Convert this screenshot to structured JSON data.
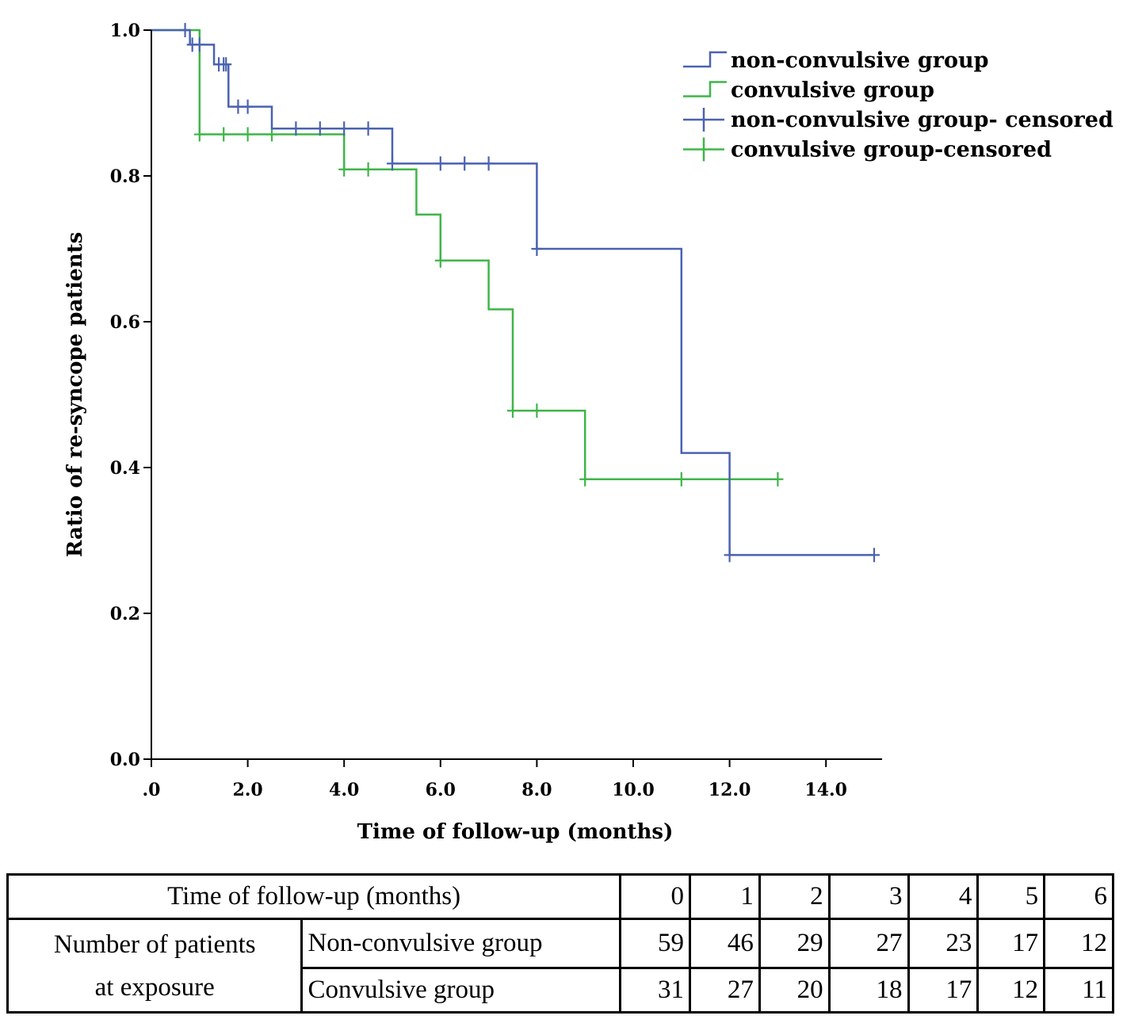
{
  "chart_data": {
    "type": "line",
    "step": true,
    "xlabel": "Time of follow-up (months)",
    "ylabel": "Ratio of re-syncope patients",
    "xlim": [
      0,
      15
    ],
    "ylim": [
      0,
      1
    ],
    "xticks": [
      {
        "value": 0,
        "label": ".0"
      },
      {
        "value": 2,
        "label": "2.0"
      },
      {
        "value": 4,
        "label": "4.0"
      },
      {
        "value": 6,
        "label": "6.0"
      },
      {
        "value": 8,
        "label": "8.0"
      },
      {
        "value": 10,
        "label": "10.0"
      },
      {
        "value": 12,
        "label": "12.0"
      },
      {
        "value": 14,
        "label": "14.0"
      }
    ],
    "yticks": [
      {
        "value": 0,
        "label": "0.0"
      },
      {
        "value": 0.2,
        "label": "0.2"
      },
      {
        "value": 0.4,
        "label": "0.4"
      },
      {
        "value": 0.6,
        "label": "0.6"
      },
      {
        "value": 0.8,
        "label": "0.8"
      },
      {
        "value": 1.0,
        "label": "1.0"
      }
    ],
    "grid": false,
    "legend_position": "top-right",
    "legend": [
      {
        "label": "non-convulsive group",
        "symbol": "step",
        "color": "#4a62b0"
      },
      {
        "label": "convulsive group",
        "symbol": "step",
        "color": "#3fb548"
      },
      {
        "label": "non-convulsive group- censored",
        "symbol": "plus",
        "color": "#4a62b0"
      },
      {
        "label": "convulsive group-censored",
        "symbol": "plus",
        "color": "#3fb548"
      }
    ],
    "series": [
      {
        "name": "non-convulsive group",
        "color": "#4a62b0",
        "steps": [
          {
            "x": 0,
            "y": 1.0
          },
          {
            "x": 0.8,
            "y": 0.98
          },
          {
            "x": 1.3,
            "y": 0.953
          },
          {
            "x": 1.6,
            "y": 0.895
          },
          {
            "x": 2.5,
            "y": 0.865
          },
          {
            "x": 5.0,
            "y": 0.817
          },
          {
            "x": 8.0,
            "y": 0.7
          },
          {
            "x": 11.0,
            "y": 0.42
          },
          {
            "x": 12.0,
            "y": 0.28
          }
        ],
        "end_x": 15.0,
        "censored": [
          {
            "x": 0.7,
            "y": 1.0
          },
          {
            "x": 0.85,
            "y": 0.98
          },
          {
            "x": 1.0,
            "y": 0.98
          },
          {
            "x": 1.4,
            "y": 0.953
          },
          {
            "x": 1.5,
            "y": 0.953
          },
          {
            "x": 1.55,
            "y": 0.953
          },
          {
            "x": 1.8,
            "y": 0.895
          },
          {
            "x": 2.0,
            "y": 0.895
          },
          {
            "x": 3.0,
            "y": 0.865
          },
          {
            "x": 3.5,
            "y": 0.865
          },
          {
            "x": 4.0,
            "y": 0.865
          },
          {
            "x": 4.5,
            "y": 0.865
          },
          {
            "x": 5.0,
            "y": 0.817
          },
          {
            "x": 6.0,
            "y": 0.817
          },
          {
            "x": 6.5,
            "y": 0.817
          },
          {
            "x": 7.0,
            "y": 0.817
          },
          {
            "x": 8.0,
            "y": 0.7
          },
          {
            "x": 12.0,
            "y": 0.28
          },
          {
            "x": 15.0,
            "y": 0.28
          }
        ]
      },
      {
        "name": "convulsive group",
        "color": "#3fb548",
        "steps": [
          {
            "x": 0,
            "y": 1.0
          },
          {
            "x": 1.0,
            "y": 0.857
          },
          {
            "x": 4.0,
            "y": 0.809
          },
          {
            "x": 5.5,
            "y": 0.747
          },
          {
            "x": 6.0,
            "y": 0.684
          },
          {
            "x": 7.0,
            "y": 0.617
          },
          {
            "x": 7.5,
            "y": 0.478
          },
          {
            "x": 9.0,
            "y": 0.384
          }
        ],
        "end_x": 13.0,
        "censored": [
          {
            "x": 1.0,
            "y": 0.857
          },
          {
            "x": 1.5,
            "y": 0.857
          },
          {
            "x": 2.0,
            "y": 0.857
          },
          {
            "x": 2.5,
            "y": 0.857
          },
          {
            "x": 4.0,
            "y": 0.809
          },
          {
            "x": 4.5,
            "y": 0.809
          },
          {
            "x": 6.0,
            "y": 0.684
          },
          {
            "x": 7.5,
            "y": 0.478
          },
          {
            "x": 8.0,
            "y": 0.478
          },
          {
            "x": 9.0,
            "y": 0.384
          },
          {
            "x": 11.0,
            "y": 0.384
          },
          {
            "x": 13.0,
            "y": 0.384
          }
        ]
      }
    ]
  },
  "risk_table": {
    "header_label": "Time of follow-up (months)",
    "times": [
      "0",
      "1",
      "2",
      "3",
      "4",
      "5",
      "6"
    ],
    "group_label_line1": "Number of patients",
    "group_label_line2": "at exposure",
    "rows": [
      {
        "label": "Non-convulsive group",
        "values": [
          "59",
          "46",
          "29",
          "27",
          "23",
          "17",
          "12"
        ]
      },
      {
        "label": "Convulsive group",
        "values": [
          "31",
          "27",
          "20",
          "18",
          "17",
          "12",
          "11"
        ]
      }
    ]
  }
}
